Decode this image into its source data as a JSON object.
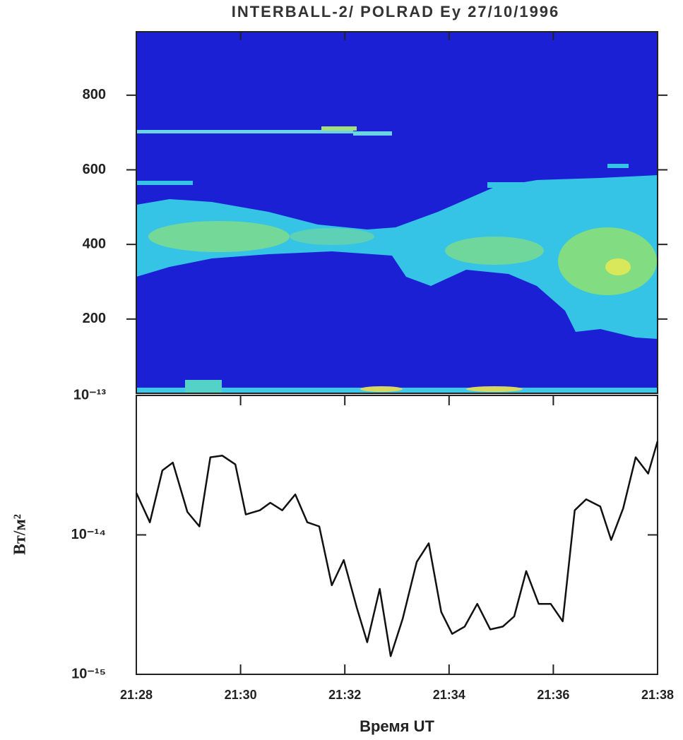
{
  "chart_data": [
    {
      "type": "spectrogram",
      "title": "INTERBALL-2/ POLRAD  Ey    27/10/1996",
      "ylim": [
        0,
        970
      ],
      "yticks": [
        200,
        400,
        600,
        800
      ]
    },
    {
      "type": "line",
      "yscale": "log",
      "ylabel": "Вт/м²",
      "xlabel": "Время UT",
      "xlim": [
        1288,
        1298
      ],
      "xticks": [
        {
          "value": 1288,
          "label": "21:28"
        },
        {
          "value": 1290,
          "label": "21:30"
        },
        {
          "value": 1292,
          "label": "21:32"
        },
        {
          "value": 1294,
          "label": "21:34"
        },
        {
          "value": 1296,
          "label": "21:36"
        },
        {
          "value": 1298,
          "label": "21:38"
        }
      ],
      "ylim": [
        1e-15,
        1e-13
      ],
      "yticks": [
        {
          "value": 1e-15,
          "label": "10⁻¹⁵"
        },
        {
          "value": 1e-14,
          "label": "10⁻¹⁴"
        },
        {
          "value": 1e-13,
          "label": "10⁻¹³"
        }
      ],
      "color": "#111111",
      "x": [
        1288.0,
        1288.26,
        1288.5,
        1288.7,
        1288.98,
        1289.21,
        1289.42,
        1289.65,
        1289.9,
        1290.1,
        1290.37,
        1290.57,
        1290.8,
        1291.05,
        1291.28,
        1291.51,
        1291.75,
        1291.98,
        1292.23,
        1292.43,
        1292.67,
        1292.88,
        1293.11,
        1293.38,
        1293.61,
        1293.85,
        1294.06,
        1294.3,
        1294.54,
        1294.79,
        1295.03,
        1295.25,
        1295.48,
        1295.72,
        1295.95,
        1296.18,
        1296.41,
        1296.63,
        1296.9,
        1297.11,
        1297.34,
        1297.58,
        1297.82,
        1298.0
      ],
      "values": [
        2e-14,
        1.23e-14,
        2.9e-14,
        3.3e-14,
        1.46e-14,
        1.15e-14,
        3.6e-14,
        3.7e-14,
        3.2e-14,
        1.4e-14,
        1.5e-14,
        1.7e-14,
        1.5e-14,
        1.95e-14,
        1.23e-14,
        1.15e-14,
        4.35e-15,
        6.6e-15,
        3e-15,
        1.7e-15,
        4.1e-15,
        1.35e-15,
        2.5e-15,
        6.4e-15,
        8.7e-15,
        2.8e-15,
        1.95e-15,
        2.2e-15,
        3.2e-15,
        2.1e-15,
        2.2e-15,
        2.6e-15,
        5.5e-15,
        3.2e-15,
        3.2e-15,
        2.4e-15,
        1.5e-14,
        1.8e-14,
        1.6e-14,
        9.2e-15,
        1.55e-14,
        3.6e-14,
        2.75e-14,
        4.7e-14
      ]
    }
  ]
}
